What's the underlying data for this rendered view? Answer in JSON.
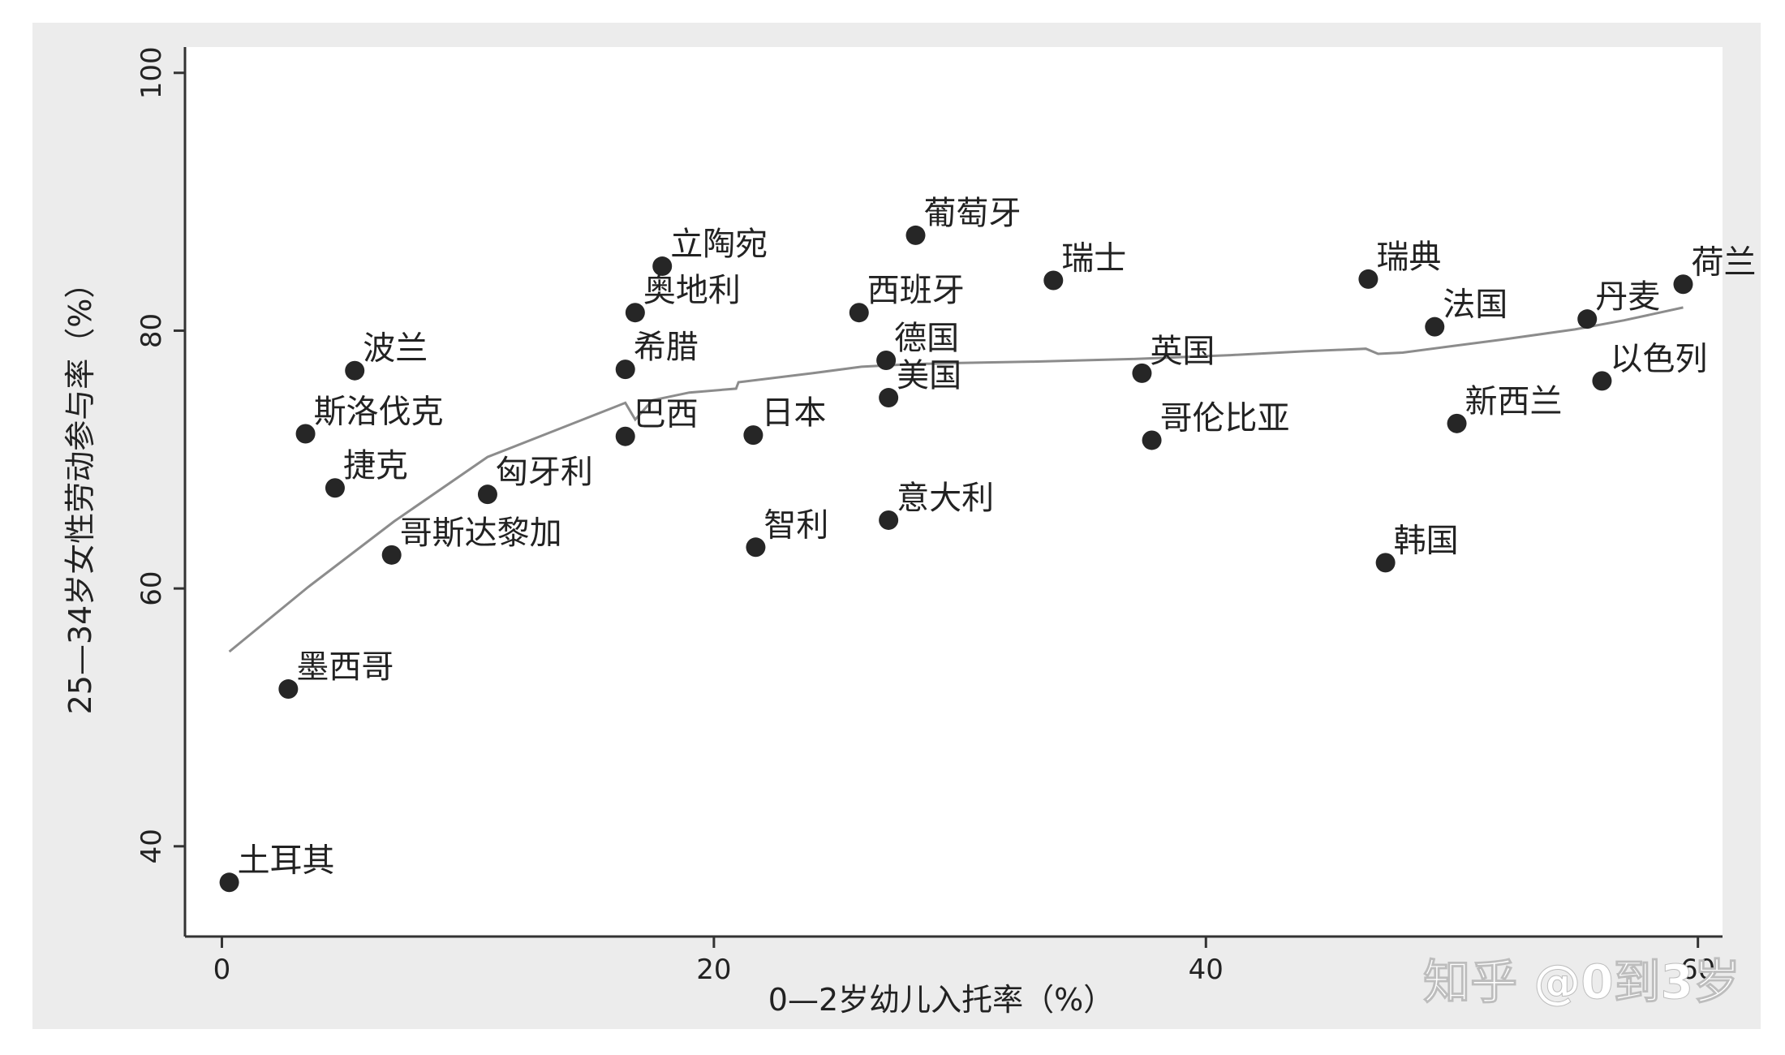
{
  "chart_data": {
    "type": "scatter",
    "xlabel": "0—2岁幼儿入托率（%）",
    "ylabel": "25—34岁女性劳动参与率（%）",
    "xlim": [
      -1.5,
      61
    ],
    "ylim": [
      33,
      102
    ],
    "xticks": [
      0,
      20,
      40,
      60
    ],
    "xtick_labels": [
      "0",
      "20",
      "40",
      "60"
    ],
    "yticks": [
      40,
      60,
      80,
      100
    ],
    "ytick_labels": [
      "40",
      "60",
      "80",
      "100"
    ],
    "grid": false,
    "legend": "none",
    "points": [
      {
        "label": "土耳其",
        "x": 0.3,
        "y": 37.2
      },
      {
        "label": "墨西哥",
        "x": 2.7,
        "y": 52.2
      },
      {
        "label": "斯洛伐克",
        "x": 3.4,
        "y": 72.0
      },
      {
        "label": "捷克",
        "x": 4.6,
        "y": 67.8
      },
      {
        "label": "波兰",
        "x": 5.4,
        "y": 76.9
      },
      {
        "label": "哥斯达黎加",
        "x": 6.9,
        "y": 62.6
      },
      {
        "label": "匈牙利",
        "x": 10.8,
        "y": 67.3
      },
      {
        "label": "希腊",
        "x": 16.4,
        "y": 77.0
      },
      {
        "label": "巴西",
        "x": 16.4,
        "y": 71.8
      },
      {
        "label": "奥地利",
        "x": 16.8,
        "y": 81.4
      },
      {
        "label": "立陶宛",
        "x": 17.9,
        "y": 85.0
      },
      {
        "label": "日本",
        "x": 21.6,
        "y": 71.9
      },
      {
        "label": "智利",
        "x": 21.7,
        "y": 63.2
      },
      {
        "label": "西班牙",
        "x": 25.9,
        "y": 81.4
      },
      {
        "label": "德国",
        "x": 27.0,
        "y": 77.7
      },
      {
        "label": "美国",
        "x": 27.1,
        "y": 74.8
      },
      {
        "label": "意大利",
        "x": 27.1,
        "y": 65.3
      },
      {
        "label": "葡萄牙",
        "x": 28.2,
        "y": 87.4
      },
      {
        "label": "瑞士",
        "x": 33.8,
        "y": 83.9
      },
      {
        "label": "英国",
        "x": 37.4,
        "y": 76.7
      },
      {
        "label": "哥伦比亚",
        "x": 37.8,
        "y": 71.5
      },
      {
        "label": "瑞典",
        "x": 46.6,
        "y": 84.0
      },
      {
        "label": "韩国",
        "x": 47.3,
        "y": 62.0
      },
      {
        "label": "法国",
        "x": 49.3,
        "y": 80.3
      },
      {
        "label": "新西兰",
        "x": 50.2,
        "y": 72.8
      },
      {
        "label": "丹麦",
        "x": 55.5,
        "y": 80.9
      },
      {
        "label": "以色列",
        "x": 56.1,
        "y": 76.1
      },
      {
        "label": "荷兰",
        "x": 59.4,
        "y": 83.6
      }
    ],
    "fit_line": {
      "x": [
        0.3,
        3.5,
        7.0,
        10.8,
        14.0,
        16.4,
        16.8,
        17.5,
        19.0,
        20.9,
        21.0,
        24.0,
        26.0,
        28.0,
        30.0,
        33.0,
        37.0,
        41.0,
        44.0,
        46.5,
        47.0,
        48.0,
        50.0,
        52.0,
        55.0,
        57.0,
        59.4
      ],
      "y": [
        55.1,
        60.1,
        65.2,
        70.2,
        72.6,
        74.4,
        73.1,
        74.6,
        75.2,
        75.5,
        76.0,
        76.7,
        77.2,
        77.4,
        77.5,
        77.6,
        77.8,
        78.1,
        78.4,
        78.6,
        78.2,
        78.3,
        78.8,
        79.3,
        80.1,
        80.8,
        81.8
      ]
    }
  },
  "colors": {
    "frame_bg": "#ececec",
    "plot_bg": "#ffffff",
    "marker": "#262626",
    "fit_line": "#8c8c8c",
    "axis": "#333333"
  },
  "watermark": "知乎 @0到3岁"
}
